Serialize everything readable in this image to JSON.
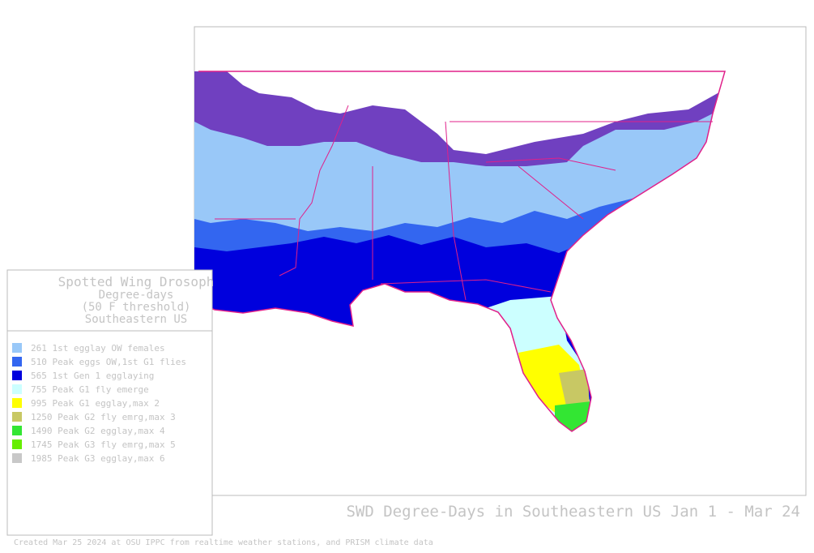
{
  "legend": {
    "title_lines": [
      "Spotted Wing Drosoph",
      "Degree-days",
      "(50 F threshold)",
      "Southeastern US"
    ],
    "items": [
      {
        "label": "261 1st egglay OW females",
        "color": "#99c8f8"
      },
      {
        "label": "510 Peak eggs OW,1st G1 flies",
        "color": "#3366f0"
      },
      {
        "label": "565 1st Gen 1 egglaying",
        "color": "#0000dd"
      },
      {
        "label": "755 Peak G1 fly emerge",
        "color": "#ccffff"
      },
      {
        "label": "995 Peak G1 egglay,max 2",
        "color": "#ffff00"
      },
      {
        "label": "1250 Peak G2 fly emrg,max 3",
        "color": "#c8c864"
      },
      {
        "label": "1490 Peak G2 egglay,max 4",
        "color": "#33e633"
      },
      {
        "label": "1745 Peak G3 fly emrg,max 5",
        "color": "#66ee00"
      },
      {
        "label": "1985 Peak G3 egglay,max 6",
        "color": "#c8c8c8"
      }
    ]
  },
  "title": "SWD Degree-Days in Southeastern US Jan 1 - Mar 24",
  "footer": "Created Mar 25 2024 at OSU IPPC from  realtime weather stations, and PRISM climate data"
}
